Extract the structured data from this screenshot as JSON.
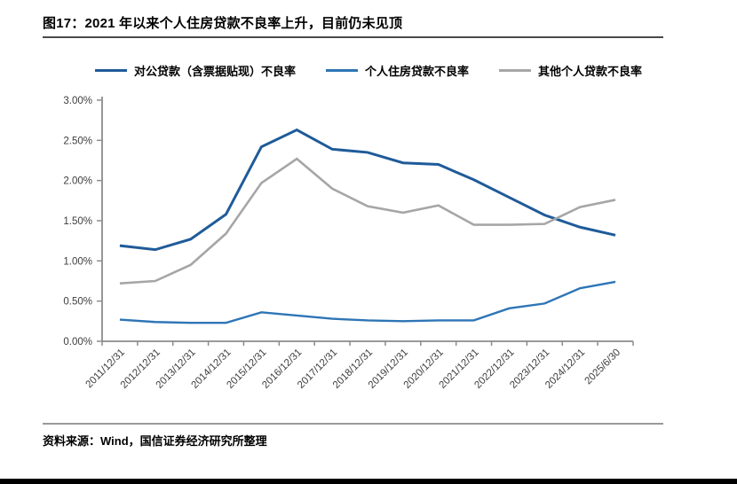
{
  "page": {
    "title": "图17：2021 年以来个人住房贷款不良率上升，目前仍未见顶",
    "source": "资料来源：Wind，国信证券经济研究所整理"
  },
  "legend": [
    {
      "label": "对公贷款（含票据贴现）不良率",
      "color": "#1f5b99"
    },
    {
      "label": "个人住房贷款不良率",
      "color": "#2e75b6"
    },
    {
      "label": "其他个人贷款不良率",
      "color": "#a6a6a6"
    }
  ],
  "chart_data": {
    "type": "line",
    "title": "图17：2021 年以来个人住房贷款不良率上升，目前仍未见顶",
    "categories": [
      "2011/12/31",
      "2012/12/31",
      "2013/12/31",
      "2014/12/31",
      "2015/12/31",
      "2016/12/31",
      "2017/12/31",
      "2018/12/31",
      "2019/12/31",
      "2020/12/31",
      "2021/12/31",
      "2022/12/31",
      "2023/12/31",
      "2024/12/31",
      "2025/6/30"
    ],
    "series": [
      {
        "name": "对公贷款（含票据贴现）不良率",
        "color": "#1f5b99",
        "values": [
          1.19,
          1.14,
          1.27,
          1.58,
          2.42,
          2.63,
          2.39,
          2.35,
          2.22,
          2.2,
          2.01,
          1.79,
          1.57,
          1.42,
          1.32
        ]
      },
      {
        "name": "个人住房贷款不良率",
        "color": "#2e75b6",
        "values": [
          0.27,
          0.24,
          0.23,
          0.23,
          0.36,
          0.32,
          0.28,
          0.26,
          0.25,
          0.26,
          0.26,
          0.41,
          0.47,
          0.66,
          0.74
        ]
      },
      {
        "name": "其他个人贷款不良率",
        "color": "#a6a6a6",
        "values": [
          0.72,
          0.75,
          0.95,
          1.34,
          1.97,
          2.27,
          1.9,
          1.68,
          1.6,
          1.69,
          1.45,
          1.45,
          1.46,
          1.67,
          1.76
        ]
      }
    ],
    "xlabel": "",
    "ylabel": "",
    "ylim": [
      0,
      3.0
    ],
    "ytick_step": 0.5,
    "yticks": [
      "0.00%",
      "0.50%",
      "1.00%",
      "1.50%",
      "2.00%",
      "2.50%",
      "3.00%"
    ],
    "grid": false,
    "legend_position": "top",
    "axis_color": "#8c8c8c",
    "label_color": "#3d3d3d"
  }
}
